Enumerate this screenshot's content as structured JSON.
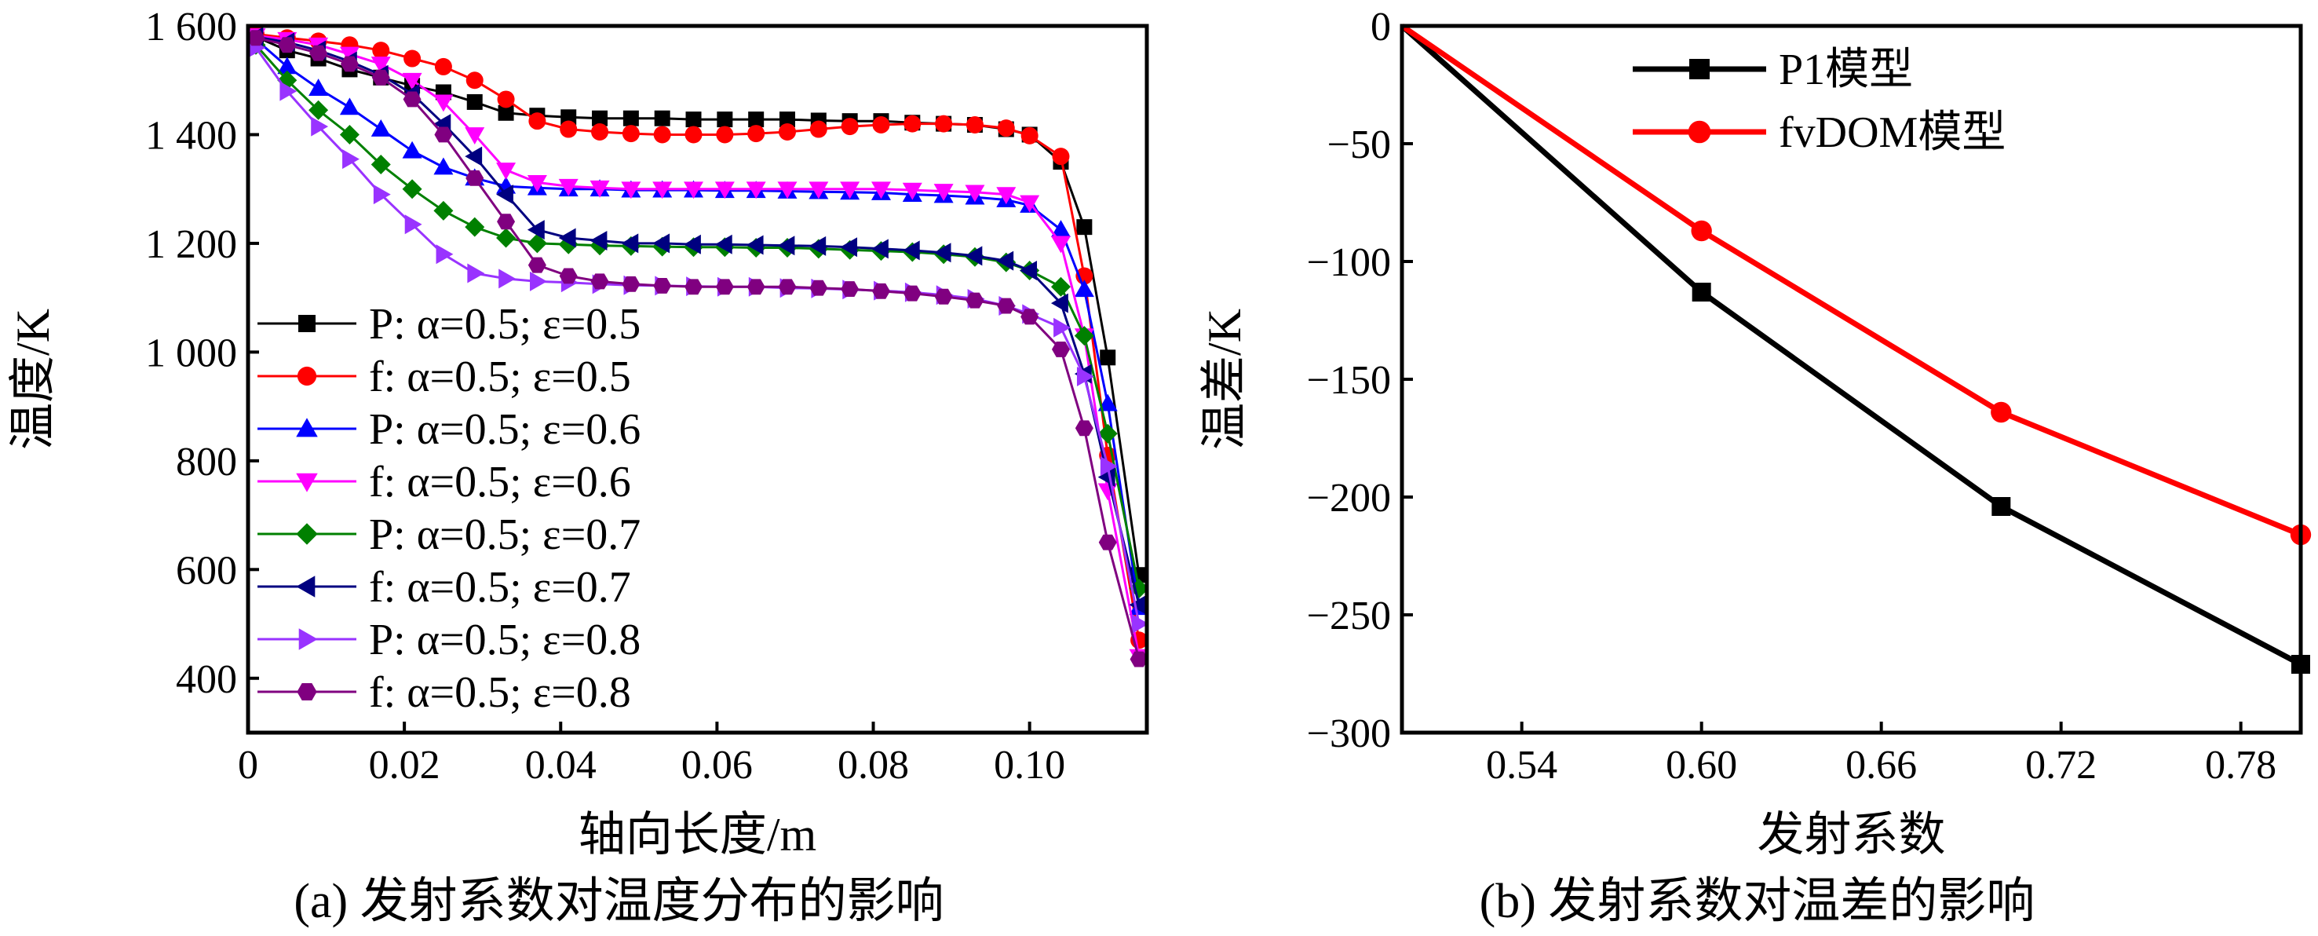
{
  "chart_data": [
    {
      "type": "line",
      "caption": "(a) 发射系数对温度分布的影响",
      "xlabel": "轴向长度/m",
      "ylabel": "温度/K",
      "xlim": [
        0,
        0.115
      ],
      "ylim": [
        300,
        1600
      ],
      "xticks": [
        0,
        0.02,
        0.04,
        0.06,
        0.08,
        0.1
      ],
      "xtick_labels": [
        "0",
        "0.02",
        "0.04",
        "0.06",
        "0.08",
        "0.10"
      ],
      "yticks": [
        400,
        600,
        800,
        1000,
        1200,
        1400,
        1600
      ],
      "ytick_labels": [
        "400",
        "600",
        "800",
        "1 000",
        "1 200",
        "1 400",
        "1 600"
      ],
      "legend_position": "lower-left",
      "series": [
        {
          "name": "P: α=0.5; ε=0.5",
          "color": "#000000",
          "marker": "square",
          "x": [
            0.001,
            0.005,
            0.009,
            0.013,
            0.017,
            0.021,
            0.025,
            0.029,
            0.033,
            0.037,
            0.041,
            0.045,
            0.049,
            0.053,
            0.057,
            0.061,
            0.065,
            0.069,
            0.073,
            0.077,
            0.081,
            0.085,
            0.089,
            0.093,
            0.097,
            0.1,
            0.104,
            0.107,
            0.11,
            0.114
          ],
          "y": [
            1580,
            1555,
            1540,
            1520,
            1505,
            1490,
            1478,
            1460,
            1440,
            1435,
            1432,
            1430,
            1430,
            1430,
            1428,
            1428,
            1428,
            1428,
            1426,
            1425,
            1425,
            1422,
            1420,
            1418,
            1410,
            1400,
            1350,
            1230,
            990,
            590
          ]
        },
        {
          "name": "f: α=0.5; ε=0.5",
          "color": "#ff0000",
          "marker": "circle",
          "x": [
            0.001,
            0.005,
            0.009,
            0.013,
            0.017,
            0.021,
            0.025,
            0.029,
            0.033,
            0.037,
            0.041,
            0.045,
            0.049,
            0.053,
            0.057,
            0.061,
            0.065,
            0.069,
            0.073,
            0.077,
            0.081,
            0.085,
            0.089,
            0.093,
            0.097,
            0.1,
            0.104,
            0.107,
            0.11,
            0.114
          ],
          "y": [
            1585,
            1578,
            1572,
            1565,
            1555,
            1540,
            1525,
            1500,
            1465,
            1425,
            1410,
            1405,
            1402,
            1400,
            1400,
            1400,
            1402,
            1405,
            1410,
            1415,
            1418,
            1420,
            1420,
            1418,
            1412,
            1398,
            1360,
            1140,
            810,
            470
          ]
        },
        {
          "name": "P: α=0.5; ε=0.6",
          "color": "#0000ff",
          "marker": "triangle-up",
          "x": [
            0.001,
            0.005,
            0.009,
            0.013,
            0.017,
            0.021,
            0.025,
            0.029,
            0.033,
            0.037,
            0.041,
            0.045,
            0.049,
            0.053,
            0.057,
            0.061,
            0.065,
            0.069,
            0.073,
            0.077,
            0.081,
            0.085,
            0.089,
            0.093,
            0.097,
            0.1,
            0.104,
            0.107,
            0.11,
            0.114
          ],
          "y": [
            1575,
            1525,
            1485,
            1450,
            1410,
            1370,
            1340,
            1320,
            1305,
            1302,
            1300,
            1300,
            1298,
            1298,
            1298,
            1297,
            1297,
            1296,
            1295,
            1294,
            1293,
            1290,
            1288,
            1285,
            1280,
            1270,
            1225,
            1115,
            905,
            530
          ]
        },
        {
          "name": "f: α=0.5; ε=0.6",
          "color": "#ff00ff",
          "marker": "triangle-down",
          "x": [
            0.001,
            0.005,
            0.009,
            0.013,
            0.017,
            0.021,
            0.025,
            0.029,
            0.033,
            0.037,
            0.041,
            0.045,
            0.049,
            0.053,
            0.057,
            0.061,
            0.065,
            0.069,
            0.073,
            0.077,
            0.081,
            0.085,
            0.089,
            0.093,
            0.097,
            0.1,
            0.104,
            0.107,
            0.11,
            0.114
          ],
          "y": [
            1582,
            1575,
            1565,
            1548,
            1530,
            1500,
            1460,
            1400,
            1335,
            1312,
            1305,
            1302,
            1300,
            1300,
            1300,
            1300,
            1300,
            1300,
            1300,
            1300,
            1300,
            1298,
            1296,
            1294,
            1290,
            1275,
            1200,
            1030,
            745,
            440
          ]
        },
        {
          "name": "P: α=0.5; ε=0.7",
          "color": "#008000",
          "marker": "diamond",
          "x": [
            0.001,
            0.005,
            0.009,
            0.013,
            0.017,
            0.021,
            0.025,
            0.029,
            0.033,
            0.037,
            0.041,
            0.045,
            0.049,
            0.053,
            0.057,
            0.061,
            0.065,
            0.069,
            0.073,
            0.077,
            0.081,
            0.085,
            0.089,
            0.093,
            0.097,
            0.1,
            0.104,
            0.107,
            0.11,
            0.114
          ],
          "y": [
            1565,
            1500,
            1445,
            1400,
            1345,
            1300,
            1260,
            1230,
            1210,
            1200,
            1198,
            1196,
            1195,
            1194,
            1193,
            1193,
            1192,
            1192,
            1190,
            1188,
            1186,
            1184,
            1180,
            1175,
            1165,
            1150,
            1120,
            1030,
            850,
            565
          ]
        },
        {
          "name": "f: α=0.5; ε=0.7",
          "color": "#000080",
          "marker": "triangle-left",
          "x": [
            0.001,
            0.005,
            0.009,
            0.013,
            0.017,
            0.021,
            0.025,
            0.029,
            0.033,
            0.037,
            0.041,
            0.045,
            0.049,
            0.053,
            0.057,
            0.061,
            0.065,
            0.069,
            0.073,
            0.077,
            0.081,
            0.085,
            0.089,
            0.093,
            0.097,
            0.1,
            0.104,
            0.107,
            0.11,
            0.114
          ],
          "y": [
            1580,
            1570,
            1555,
            1535,
            1510,
            1475,
            1420,
            1360,
            1290,
            1225,
            1210,
            1205,
            1200,
            1200,
            1198,
            1198,
            1197,
            1196,
            1195,
            1193,
            1190,
            1187,
            1183,
            1177,
            1168,
            1150,
            1090,
            960,
            770,
            535
          ]
        },
        {
          "name": "P: α=0.5; ε=0.8",
          "color": "#9933ff",
          "marker": "triangle-right",
          "x": [
            0.001,
            0.005,
            0.009,
            0.013,
            0.017,
            0.021,
            0.025,
            0.029,
            0.033,
            0.037,
            0.041,
            0.045,
            0.049,
            0.053,
            0.057,
            0.061,
            0.065,
            0.069,
            0.073,
            0.077,
            0.081,
            0.085,
            0.089,
            0.093,
            0.097,
            0.1,
            0.104,
            0.107,
            0.11,
            0.114
          ],
          "y": [
            1560,
            1480,
            1415,
            1355,
            1290,
            1235,
            1180,
            1145,
            1135,
            1130,
            1128,
            1125,
            1123,
            1122,
            1121,
            1120,
            1120,
            1118,
            1117,
            1115,
            1113,
            1110,
            1105,
            1098,
            1085,
            1070,
            1045,
            955,
            790,
            500
          ]
        },
        {
          "name": "f: α=0.5; ε=0.8",
          "color": "#800080",
          "marker": "hexagon",
          "x": [
            0.001,
            0.005,
            0.009,
            0.013,
            0.017,
            0.021,
            0.025,
            0.029,
            0.033,
            0.037,
            0.041,
            0.045,
            0.049,
            0.053,
            0.057,
            0.061,
            0.065,
            0.069,
            0.073,
            0.077,
            0.081,
            0.085,
            0.089,
            0.093,
            0.097,
            0.1,
            0.104,
            0.107,
            0.11,
            0.114
          ],
          "y": [
            1578,
            1565,
            1550,
            1530,
            1505,
            1465,
            1400,
            1320,
            1240,
            1160,
            1140,
            1130,
            1125,
            1122,
            1120,
            1120,
            1120,
            1120,
            1118,
            1116,
            1112,
            1108,
            1102,
            1095,
            1085,
            1065,
            1005,
            860,
            650,
            435
          ]
        }
      ]
    },
    {
      "type": "line",
      "caption": "(b) 发射系数对温差的影响",
      "xlabel": "发射系数",
      "ylabel": "温差/K",
      "xlim": [
        0.5,
        0.8
      ],
      "ylim": [
        -300,
        0
      ],
      "xticks": [
        0.54,
        0.6,
        0.66,
        0.72,
        0.78
      ],
      "xtick_labels": [
        "0.54",
        "0.60",
        "0.66",
        "0.72",
        "0.78"
      ],
      "yticks": [
        -300,
        -250,
        -200,
        -150,
        -100,
        -50,
        0
      ],
      "ytick_labels": [
        "−300",
        "−250",
        "−200",
        "−150",
        "−100",
        "−50",
        "0"
      ],
      "legend_position": "top-center",
      "series": [
        {
          "name": "P1模型",
          "color": "#000000",
          "marker": "square",
          "x": [
            0.5,
            0.6,
            0.7,
            0.8
          ],
          "y": [
            0,
            -113,
            -204,
            -271
          ]
        },
        {
          "name": "fvDOM模型",
          "color": "#ff0000",
          "marker": "circle",
          "x": [
            0.5,
            0.6,
            0.7,
            0.8
          ],
          "y": [
            0,
            -87,
            -164,
            -216
          ]
        }
      ]
    }
  ]
}
